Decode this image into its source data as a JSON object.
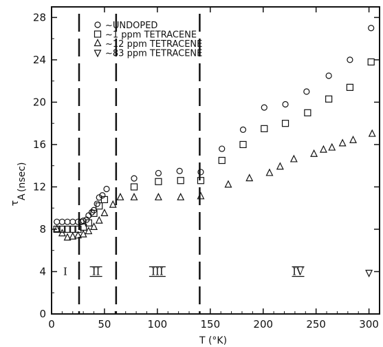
{
  "chart_data": {
    "type": "scatter",
    "xlabel": "T (°K)",
    "ylabel_main": "τ",
    "ylabel_sub": "A",
    "ylabel_units": "(nsec)",
    "xlim": [
      0,
      310
    ],
    "ylim": [
      0,
      29
    ],
    "xticks": [
      0,
      50,
      100,
      150,
      200,
      250,
      300
    ],
    "yticks": [
      0,
      4,
      8,
      12,
      16,
      20,
      24,
      28
    ],
    "grid": false,
    "legend_position": "top-left",
    "series": [
      {
        "name": "~UNDOPED",
        "marker": "circle",
        "x": [
          5,
          10,
          15,
          20,
          25,
          28,
          30,
          33,
          35,
          38,
          40,
          43,
          45,
          48,
          52,
          78,
          101,
          121,
          141,
          161,
          181,
          201,
          221,
          241,
          262,
          282,
          302
        ],
        "y": [
          8.7,
          8.7,
          8.7,
          8.7,
          8.7,
          8.7,
          8.8,
          8.9,
          9.3,
          9.6,
          9.8,
          10.4,
          11.0,
          11.2,
          11.8,
          12.8,
          13.3,
          13.5,
          13.4,
          15.6,
          17.4,
          19.5,
          19.8,
          21.0,
          22.5,
          24.0,
          27.0
        ]
      },
      {
        "name": "~1 ppm TETRACENE",
        "marker": "square",
        "x": [
          5,
          10,
          15,
          20,
          25,
          30,
          35,
          40,
          45,
          50,
          78,
          101,
          122,
          141,
          161,
          181,
          201,
          221,
          242,
          262,
          282,
          302
        ],
        "y": [
          8.0,
          8.0,
          8.0,
          8.0,
          8.0,
          8.2,
          8.6,
          9.5,
          10.2,
          10.8,
          12.0,
          12.5,
          12.6,
          12.6,
          14.5,
          16.0,
          17.5,
          18.0,
          19.0,
          20.3,
          21.4,
          23.8
        ]
      },
      {
        "name": "~12 ppm TETRACENE",
        "marker": "triangle-up",
        "x": [
          5,
          10,
          15,
          20,
          25,
          30,
          35,
          40,
          45,
          50,
          58,
          65,
          78,
          101,
          122,
          141,
          167,
          187,
          206,
          216,
          229,
          248,
          257,
          265,
          275,
          285,
          303
        ],
        "y": [
          8.0,
          7.6,
          7.2,
          7.3,
          7.4,
          7.5,
          7.8,
          8.2,
          8.8,
          9.5,
          10.3,
          11.0,
          11.0,
          11.0,
          11.0,
          11.1,
          12.2,
          12.8,
          13.3,
          13.9,
          14.6,
          15.1,
          15.5,
          15.7,
          16.1,
          16.4,
          17.0
        ]
      },
      {
        "name": "~83 ppm TETRACENE",
        "marker": "triangle-down",
        "x": [
          300
        ],
        "y": [
          3.9
        ]
      }
    ],
    "boundaries": [
      26,
      61,
      140
    ],
    "regions": [
      {
        "label": "I",
        "x": 13
      },
      {
        "label": "II",
        "x": 42
      },
      {
        "label": "III",
        "x": 100
      },
      {
        "label": "IV",
        "x": 233
      }
    ],
    "region_label_y": 4
  }
}
